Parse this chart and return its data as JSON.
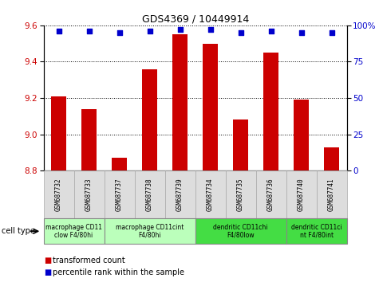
{
  "title": "GDS4369 / 10449914",
  "samples": [
    "GSM687732",
    "GSM687733",
    "GSM687737",
    "GSM687738",
    "GSM687739",
    "GSM687734",
    "GSM687735",
    "GSM687736",
    "GSM687740",
    "GSM687741"
  ],
  "transformed_count": [
    9.21,
    9.14,
    8.87,
    9.36,
    9.55,
    9.5,
    9.08,
    9.45,
    9.19,
    8.93
  ],
  "percentile_rank": [
    96,
    96,
    95,
    96,
    97,
    97,
    95,
    96,
    95,
    95
  ],
  "ylim_left": [
    8.8,
    9.6
  ],
  "ylim_right": [
    0,
    100
  ],
  "yticks_left": [
    8.8,
    9.0,
    9.2,
    9.4,
    9.6
  ],
  "yticks_right": [
    0,
    25,
    50,
    75,
    100
  ],
  "bar_color": "#cc0000",
  "dot_color": "#0000cc",
  "bg_color": "#ffffff",
  "cell_type_groups": [
    {
      "label": "macrophage CD11\nclow F4/80hi",
      "start": 0,
      "end": 2,
      "color": "#bbffbb"
    },
    {
      "label": "macrophage CD11cint\nF4/80hi",
      "start": 2,
      "end": 5,
      "color": "#bbffbb"
    },
    {
      "label": "dendritic CD11chi\nF4/80low",
      "start": 5,
      "end": 8,
      "color": "#44dd44"
    },
    {
      "label": "dendritic CD11ci\nnt F4/80int",
      "start": 8,
      "end": 10,
      "color": "#44dd44"
    }
  ],
  "legend_bar_label": "transformed count",
  "legend_dot_label": "percentile rank within the sample",
  "cell_type_label": "cell type"
}
